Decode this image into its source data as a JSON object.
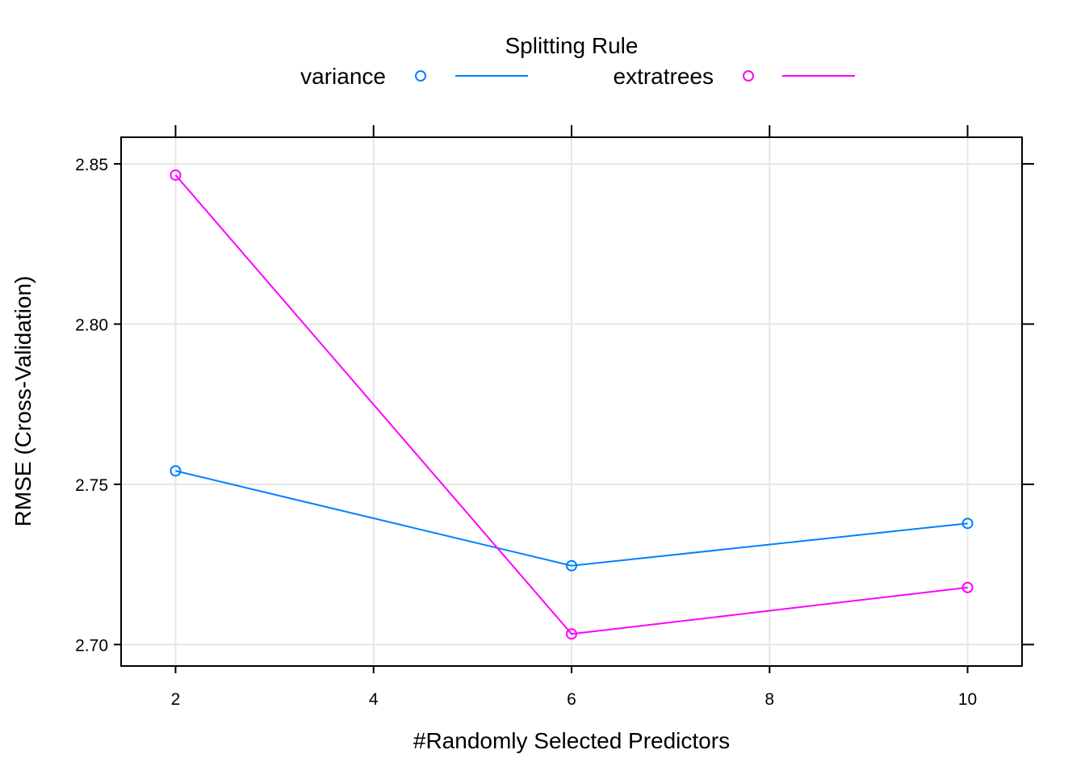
{
  "chart_data": {
    "type": "line",
    "xlabel": "#Randomly Selected Predictors",
    "ylabel": "RMSE (Cross-Validation)",
    "xlim": [
      1.45,
      10.55
    ],
    "ylim": [
      2.6933,
      2.8583
    ],
    "x_ticks": [
      2,
      4,
      6,
      8,
      10
    ],
    "x_tick_labels": [
      "2",
      "4",
      "6",
      "8",
      "10"
    ],
    "y_ticks": [
      2.7,
      2.75,
      2.8,
      2.85
    ],
    "y_tick_labels": [
      "2.70",
      "2.75",
      "2.80",
      "2.85"
    ],
    "grid": true,
    "legend": {
      "title": "Splitting Rule",
      "position": "top",
      "entries": [
        "variance",
        "extratrees"
      ]
    },
    "series": [
      {
        "name": "variance",
        "color": "#0080ff",
        "marker": "open-circle",
        "x": [
          2,
          6,
          10
        ],
        "y": [
          2.7542,
          2.7246,
          2.7378
        ]
      },
      {
        "name": "extratrees",
        "color": "#ff00ff",
        "marker": "open-circle",
        "x": [
          2,
          6,
          10
        ],
        "y": [
          2.8465,
          2.7033,
          2.7178
        ]
      }
    ]
  }
}
